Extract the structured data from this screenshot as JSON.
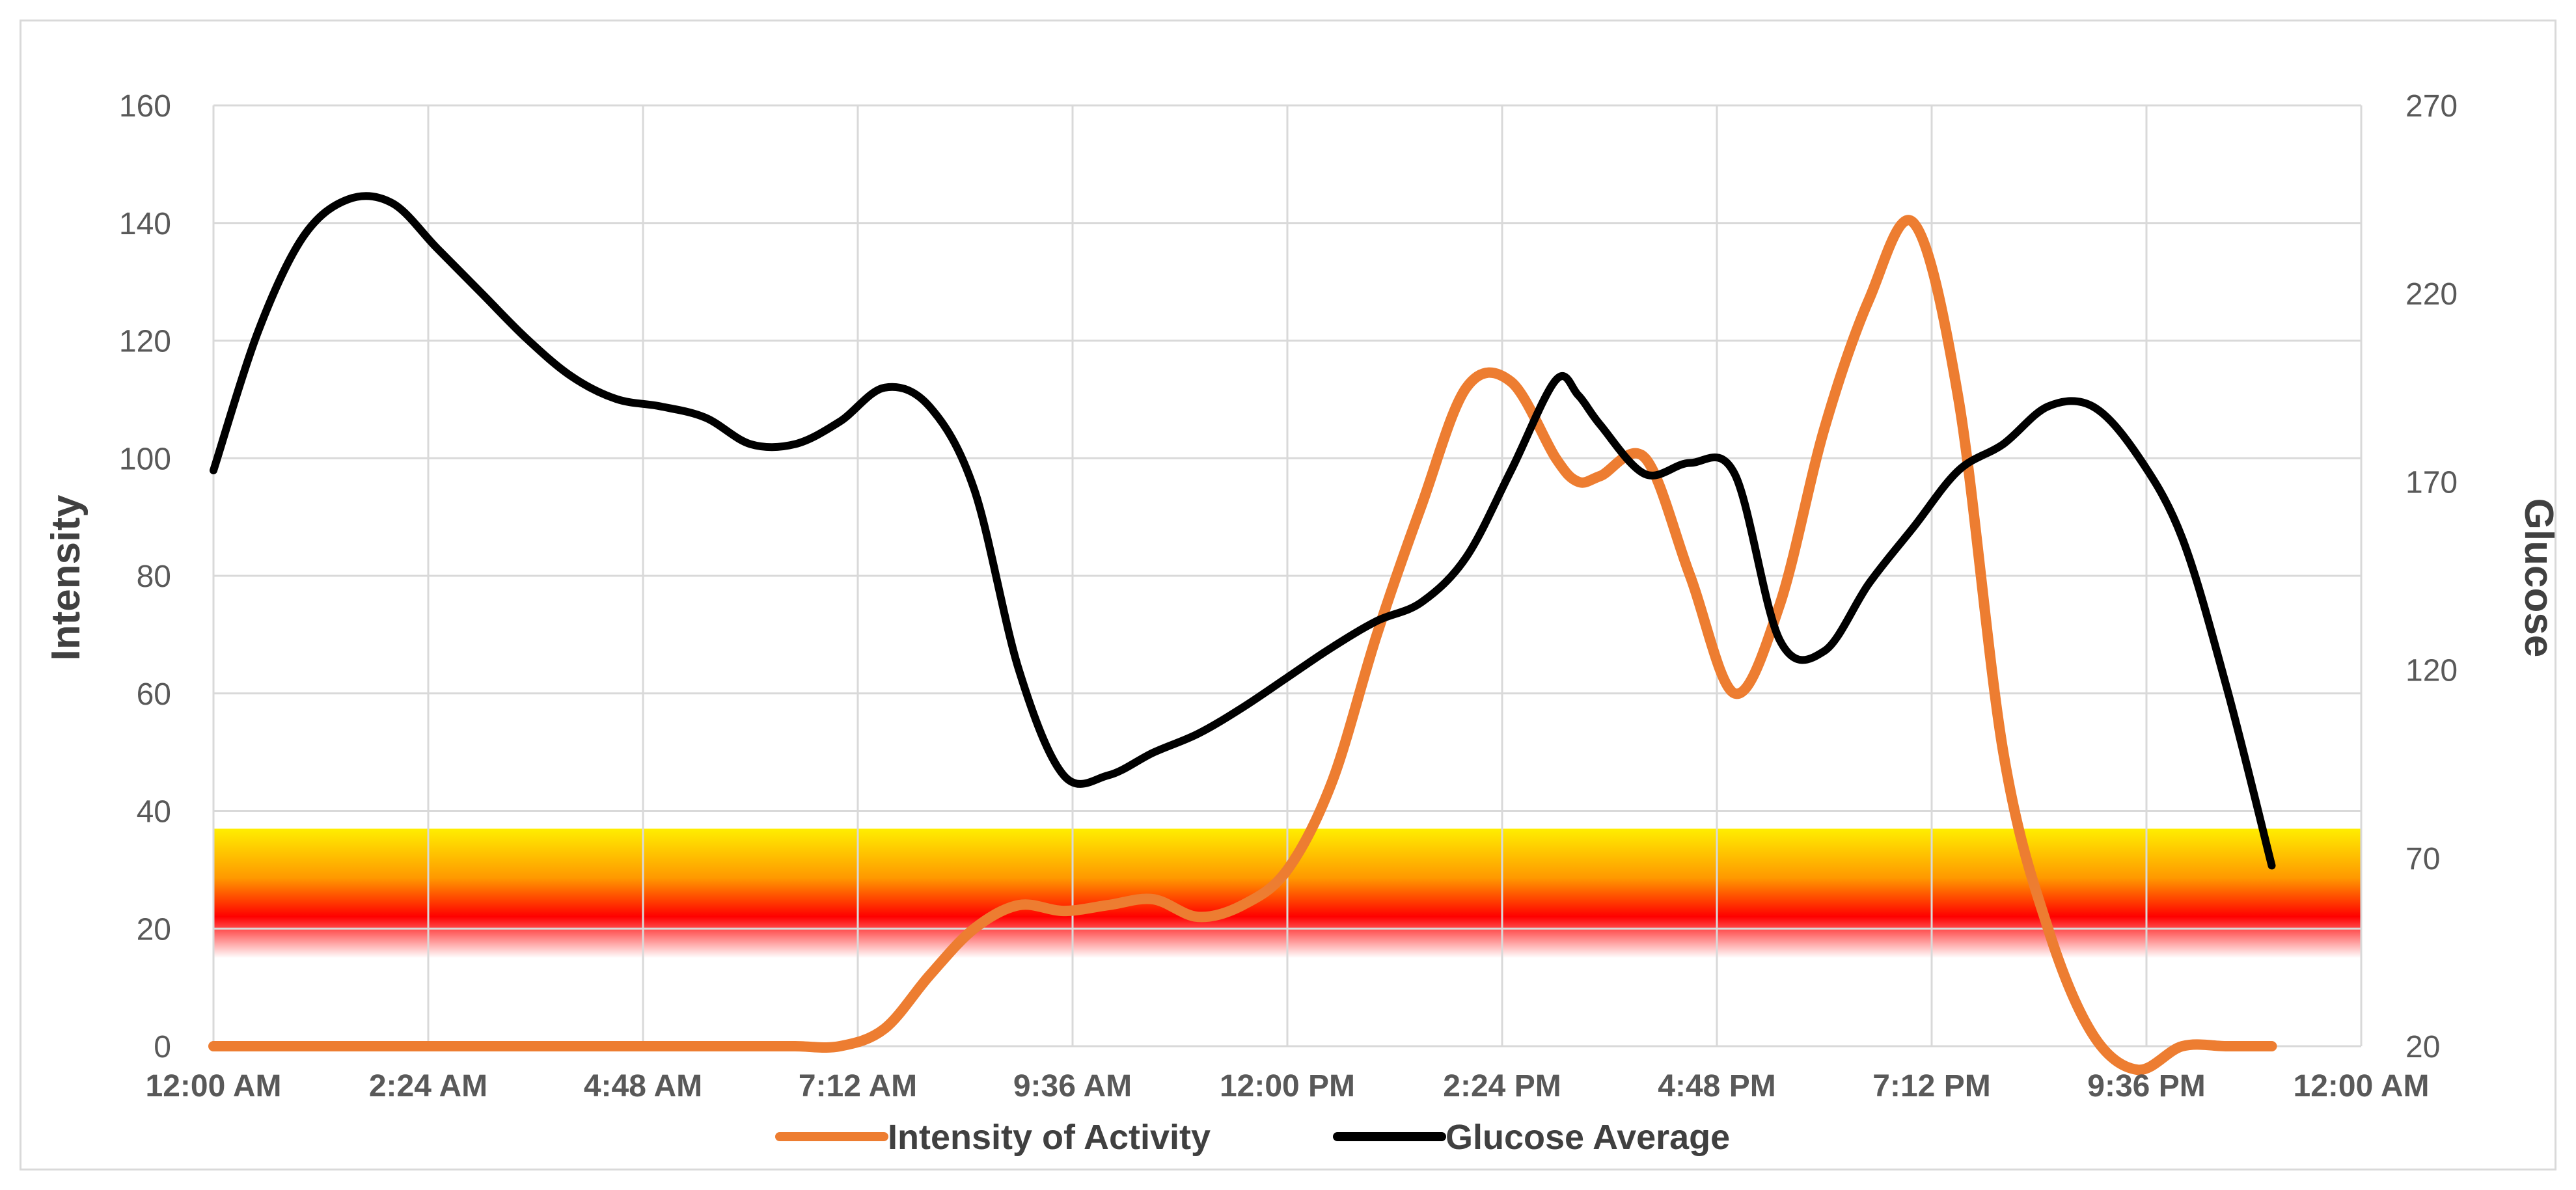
{
  "chart_data": {
    "type": "line",
    "title": "",
    "x_ticks": [
      "12:00 AM",
      "2:24 AM",
      "4:48 AM",
      "7:12 AM",
      "9:36 AM",
      "12:00 PM",
      "2:24 PM",
      "4:48 PM",
      "7:12 PM",
      "9:36 PM",
      "12:00 AM"
    ],
    "xlim_hours": [
      0,
      24
    ],
    "y_left": {
      "label": "Intensity",
      "ticks": [
        0,
        20,
        40,
        60,
        80,
        100,
        120,
        140,
        160
      ],
      "lim": [
        0,
        160
      ]
    },
    "y_right": {
      "label": "Glucose",
      "ticks": [
        20,
        70,
        120,
        170,
        220,
        270
      ],
      "lim": [
        20,
        270
      ]
    },
    "band": {
      "from": 15,
      "to": 37,
      "axis": "left",
      "colors": [
        "#ffee00",
        "#ff9900",
        "#ff0000",
        "#ffffff"
      ]
    },
    "grid": "both",
    "legend_position": "bottom",
    "series": [
      {
        "name": "Intensity of Activity",
        "axis": "left",
        "color": "#ed7d31",
        "x_hours": [
          0,
          1,
          2,
          3,
          4,
          5,
          6,
          6.5,
          7,
          7.5,
          8,
          8.5,
          9,
          9.5,
          10,
          10.5,
          11,
          11.5,
          12,
          12.5,
          13,
          13.5,
          14,
          14.5,
          15,
          15.25,
          15.5,
          16,
          16.5,
          17,
          17.5,
          18,
          18.5,
          19,
          19.5,
          20,
          20.5,
          21,
          21.5,
          22,
          22.5,
          23
        ],
        "values": [
          0,
          0,
          0,
          0,
          0,
          0,
          0,
          0,
          0,
          3,
          12,
          20,
          24,
          23,
          24,
          25,
          22,
          24,
          30,
          45,
          70,
          92,
          112,
          113,
          100,
          96,
          97,
          100,
          80,
          60,
          75,
          105,
          127,
          140,
          110,
          50,
          20,
          2,
          -4,
          0,
          0,
          0
        ]
      },
      {
        "name": "Glucose Average",
        "axis": "right",
        "color": "#000000",
        "x_hours": [
          0,
          0.5,
          1,
          1.5,
          2,
          2.5,
          3,
          3.5,
          4,
          4.5,
          5,
          5.5,
          6,
          6.5,
          7,
          7.5,
          8,
          8.5,
          9,
          9.5,
          10,
          10.5,
          11,
          11.5,
          12,
          12.5,
          13,
          13.5,
          14,
          14.5,
          15,
          15.25,
          15.5,
          16,
          16.5,
          17,
          17.5,
          18,
          18.5,
          19,
          19.5,
          20,
          20.5,
          21,
          21.5,
          22,
          22.5,
          23
        ],
        "values": [
          173,
          210,
          235,
          245,
          244,
          232,
          220,
          208,
          198,
          192,
          190,
          187,
          180,
          180,
          186,
          195,
          190,
          168,
          120,
          92,
          92,
          98,
          103,
          110,
          118,
          126,
          133,
          138,
          150,
          173,
          197,
          193,
          185,
          172,
          175,
          172,
          128,
          125,
          143,
          158,
          173,
          180,
          190,
          190,
          177,
          155,
          115,
          68
        ]
      }
    ]
  }
}
